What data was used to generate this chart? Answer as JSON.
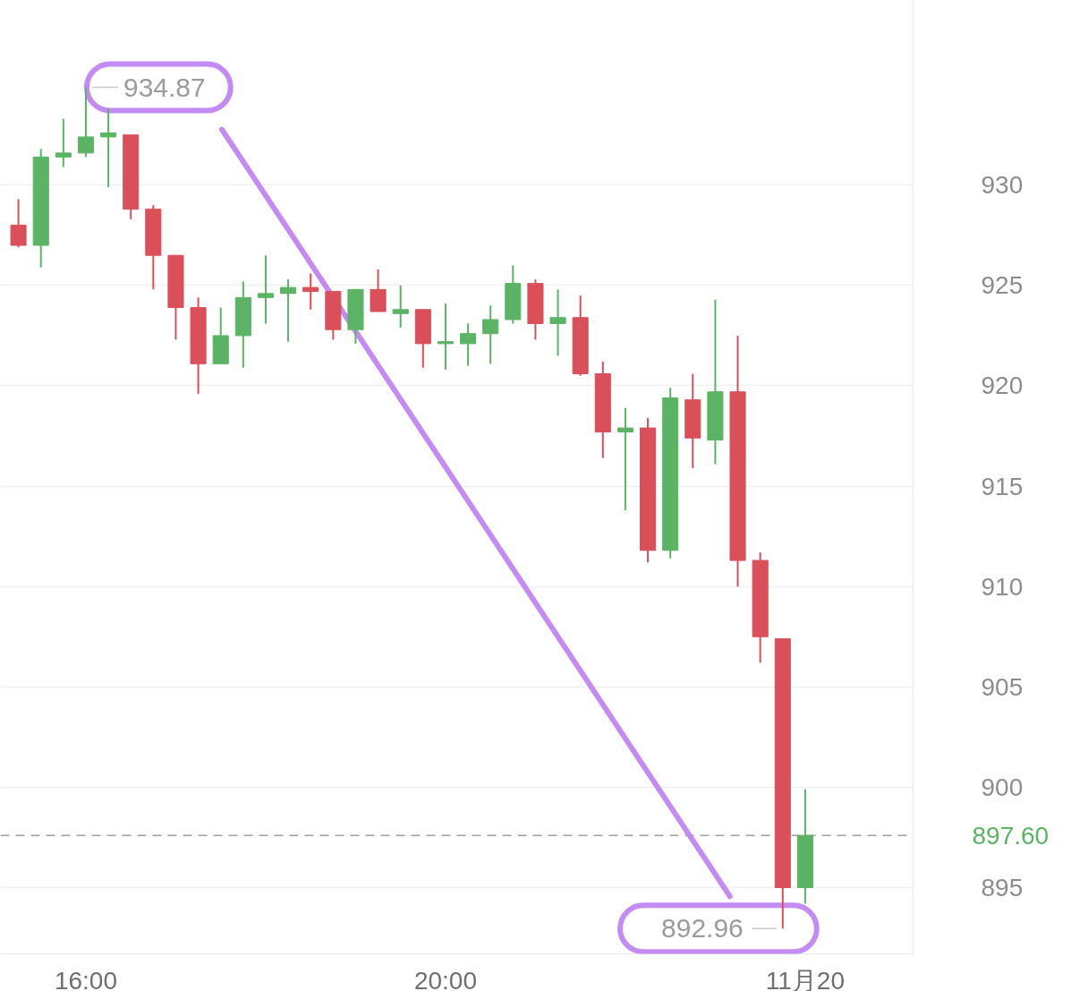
{
  "chart_data": {
    "type": "candlestick",
    "x": [
      15.25,
      15.5,
      15.75,
      16.0,
      16.25,
      16.5,
      16.75,
      17.0,
      17.25,
      17.5,
      17.75,
      18.0,
      18.25,
      18.5,
      18.75,
      19.0,
      19.25,
      19.5,
      19.75,
      20.0,
      20.25,
      20.5,
      20.75,
      21.0,
      21.25,
      21.5,
      21.75,
      22.0,
      22.25,
      22.5,
      22.75,
      23.0,
      23.25,
      23.5,
      23.75,
      24.0
    ],
    "ohlc": [
      [
        928.0,
        929.3,
        926.9,
        927.0
      ],
      [
        927.0,
        931.8,
        925.9,
        931.4
      ],
      [
        931.4,
        933.3,
        930.9,
        931.6
      ],
      [
        931.6,
        934.87,
        931.4,
        932.4
      ],
      [
        932.4,
        933.8,
        929.9,
        932.6
      ],
      [
        932.5,
        932.5,
        928.3,
        928.8
      ],
      [
        928.8,
        929.0,
        924.8,
        926.5
      ],
      [
        926.5,
        926.5,
        922.3,
        923.9
      ],
      [
        923.9,
        924.4,
        919.6,
        921.1
      ],
      [
        921.1,
        923.9,
        921.1,
        922.5
      ],
      [
        922.5,
        925.2,
        920.9,
        924.4
      ],
      [
        924.4,
        926.5,
        923.1,
        924.6
      ],
      [
        924.6,
        925.3,
        922.2,
        924.9
      ],
      [
        924.9,
        925.6,
        923.8,
        924.7
      ],
      [
        924.7,
        924.7,
        922.3,
        922.8
      ],
      [
        922.8,
        924.8,
        922.1,
        924.8
      ],
      [
        924.8,
        925.8,
        923.7,
        923.7
      ],
      [
        923.6,
        925.0,
        922.9,
        923.8
      ],
      [
        923.8,
        923.8,
        920.9,
        922.1
      ],
      [
        922.1,
        924.1,
        920.8,
        922.2
      ],
      [
        922.1,
        923.1,
        921.0,
        922.6
      ],
      [
        922.6,
        924.0,
        921.1,
        923.3
      ],
      [
        923.3,
        926.0,
        923.1,
        925.1
      ],
      [
        925.1,
        925.3,
        922.3,
        923.1
      ],
      [
        923.1,
        924.8,
        921.5,
        923.4
      ],
      [
        923.4,
        924.5,
        920.5,
        920.6
      ],
      [
        920.6,
        921.2,
        916.4,
        917.7
      ],
      [
        917.7,
        918.9,
        913.8,
        917.9
      ],
      [
        917.9,
        918.4,
        911.2,
        911.8
      ],
      [
        911.8,
        919.9,
        911.4,
        919.4
      ],
      [
        919.3,
        920.6,
        915.9,
        917.4
      ],
      [
        917.3,
        924.3,
        916.1,
        919.7
      ],
      [
        919.7,
        922.5,
        910.0,
        911.3
      ],
      [
        911.3,
        911.7,
        906.2,
        907.5
      ],
      [
        907.4,
        907.4,
        892.96,
        895.0
      ],
      [
        895.0,
        899.9,
        894.2,
        897.6
      ]
    ],
    "colors": [
      "#d9505a",
      "#5cb365",
      "#5cb365",
      "#5cb365",
      "#5cb365",
      "#d9505a",
      "#d9505a",
      "#d9505a",
      "#d9505a",
      "#5cb365",
      "#5cb365",
      "#5cb365",
      "#5cb365",
      "#d9505a",
      "#d9505a",
      "#5cb365",
      "#d9505a",
      "#5cb365",
      "#d9505a",
      "#5cb365",
      "#5cb365",
      "#5cb365",
      "#5cb365",
      "#d9505a",
      "#5cb365",
      "#d9505a",
      "#d9505a",
      "#5cb365",
      "#d9505a",
      "#5cb365",
      "#d9505a",
      "#5cb365",
      "#d9505a",
      "#d9505a",
      "#d9505a",
      "#5cb365"
    ],
    "xlim": [
      15.05,
      25.2
    ],
    "xticks": [
      {
        "value": 16,
        "label": "16:00"
      },
      {
        "value": 20,
        "label": "20:00"
      },
      {
        "value": 24,
        "label": "11月20"
      }
    ],
    "ylim": [
      891.7,
      939.2
    ],
    "yticks": [
      895,
      900,
      905,
      910,
      915,
      920,
      925,
      930
    ],
    "grid": "y",
    "annotations": [
      {
        "text": "934.87",
        "x": 16.0,
        "y": 934.87
      },
      {
        "text": "892.96",
        "x": 23.75,
        "y": 892.96
      }
    ],
    "ref_lines": [
      {
        "axis": "y",
        "value": 897.6,
        "label": "897.60",
        "color": "#a0a0a0",
        "line_style": "dashed"
      }
    ]
  }
}
